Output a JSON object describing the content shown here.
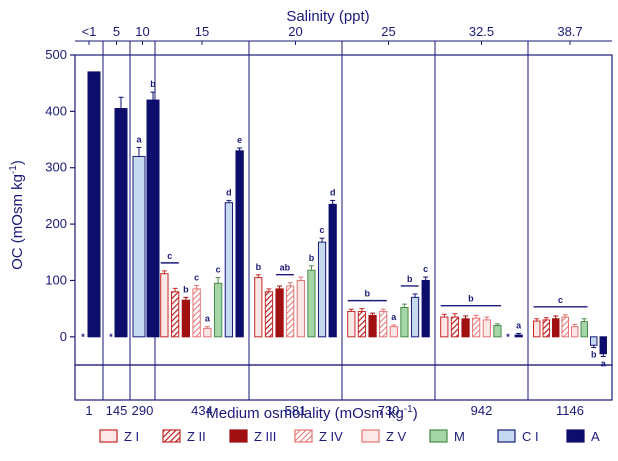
{
  "chart_data": {
    "type": "bar",
    "ylabel_main": "OC (mOsm kg",
    "ylabel_sup": "-1",
    "ylabel_end": ")",
    "xlabel_main": "Medium osmolality (mOsm kg",
    "xlabel_sup": "-1",
    "xlabel_end": ")",
    "top_axis_title": "Salinity (ppt)",
    "ylim": [
      -50,
      500
    ],
    "yticks": [
      "0",
      "100",
      "200",
      "300",
      "400",
      "500"
    ],
    "series": [
      {
        "name": "Z I",
        "pattern": "hollow",
        "color": "#c62828"
      },
      {
        "name": "Z II",
        "pattern": "hatch",
        "color": "#c62828"
      },
      {
        "name": "Z III",
        "pattern": "solid",
        "color": "#a01010"
      },
      {
        "name": "Z IV",
        "pattern": "hatch-light",
        "color": "#e57373"
      },
      {
        "name": "Z V",
        "pattern": "hollow",
        "color": "#e57373"
      },
      {
        "name": "M",
        "pattern": "solid",
        "color": "#a5d6a7"
      },
      {
        "name": "C I",
        "pattern": "solid",
        "color": "#c5d9f0"
      },
      {
        "name": "A",
        "pattern": "solid",
        "color": "#0d0d6b"
      }
    ],
    "groups": [
      {
        "osmolality": "1",
        "salinity": "<1",
        "bars": [
          {
            "series": 7,
            "value": 470,
            "err": 0
          }
        ],
        "asterisk": true
      },
      {
        "osmolality": "145",
        "salinity": "5",
        "bars": [
          {
            "series": 7,
            "value": 405,
            "err": 20
          }
        ],
        "asterisk": true
      },
      {
        "osmolality": "290",
        "salinity": "10",
        "bars": [
          {
            "series": 6,
            "value": 320,
            "err": 16,
            "label": "a"
          },
          {
            "series": 7,
            "value": 420,
            "err": 14,
            "label": "b"
          }
        ]
      },
      {
        "osmolality": "434",
        "salinity": "15",
        "bars": [
          {
            "series": 0,
            "value": 112,
            "err": 5
          },
          {
            "series": 1,
            "value": 80,
            "err": 6
          },
          {
            "series": 2,
            "value": 65,
            "err": 5,
            "label": "b"
          },
          {
            "series": 3,
            "value": 85,
            "err": 6,
            "label": "c"
          },
          {
            "series": 4,
            "value": 15,
            "err": 3,
            "label": "a"
          },
          {
            "series": 5,
            "value": 95,
            "err": 10,
            "label": "c"
          },
          {
            "series": 6,
            "value": 238,
            "err": 4,
            "label": "d"
          },
          {
            "series": 7,
            "value": 330,
            "err": 5,
            "label": "e"
          }
        ],
        "bracket": {
          "from": 0,
          "to": 1,
          "label": "c"
        }
      },
      {
        "osmolality": "581",
        "salinity": "20",
        "bars": [
          {
            "series": 0,
            "value": 105,
            "err": 5,
            "label": "b"
          },
          {
            "series": 1,
            "value": 80,
            "err": 5
          },
          {
            "series": 2,
            "value": 85,
            "err": 5
          },
          {
            "series": 3,
            "value": 90,
            "err": 6
          },
          {
            "series": 4,
            "value": 100,
            "err": 6
          },
          {
            "series": 5,
            "value": 118,
            "err": 8,
            "label": "b"
          },
          {
            "series": 6,
            "value": 168,
            "err": 7,
            "label": "c"
          },
          {
            "series": 7,
            "value": 235,
            "err": 7,
            "label": "d"
          }
        ],
        "bracket": {
          "from": 2,
          "to": 3,
          "label": "ab"
        }
      },
      {
        "osmolality": "730",
        "salinity": "25",
        "bars": [
          {
            "series": 0,
            "value": 45,
            "err": 4
          },
          {
            "series": 1,
            "value": 45,
            "err": 5
          },
          {
            "series": 2,
            "value": 38,
            "err": 4
          },
          {
            "series": 3,
            "value": 45,
            "err": 4
          },
          {
            "series": 4,
            "value": 18,
            "err": 3,
            "label": "a"
          },
          {
            "series": 5,
            "value": 52,
            "err": 6
          },
          {
            "series": 6,
            "value": 70,
            "err": 6
          },
          {
            "series": 7,
            "value": 100,
            "err": 6,
            "label": "c"
          }
        ],
        "bracket": {
          "from": 0,
          "to": 3,
          "label": "b"
        },
        "bracket2": {
          "from": 5,
          "to": 6,
          "label": "b"
        }
      },
      {
        "osmolality": "942",
        "salinity": "32.5",
        "bars": [
          {
            "series": 0,
            "value": 35,
            "err": 5
          },
          {
            "series": 1,
            "value": 35,
            "err": 6
          },
          {
            "series": 2,
            "value": 32,
            "err": 5
          },
          {
            "series": 3,
            "value": 33,
            "err": 5
          },
          {
            "series": 4,
            "value": 30,
            "err": 5
          },
          {
            "series": 5,
            "value": 20,
            "err": 3
          },
          {
            "series": 7,
            "value": 3,
            "err": 3,
            "label": "a"
          }
        ],
        "bracket": {
          "from": 0,
          "to": 5,
          "label": "b"
        },
        "asterisk_slot": 6
      },
      {
        "osmolality": "1146",
        "salinity": "38.7",
        "bars": [
          {
            "series": 0,
            "value": 28,
            "err": 4
          },
          {
            "series": 1,
            "value": 30,
            "err": 4
          },
          {
            "series": 2,
            "value": 32,
            "err": 5
          },
          {
            "series": 3,
            "value": 35,
            "err": 4
          },
          {
            "series": 4,
            "value": 18,
            "err": 4
          },
          {
            "series": 5,
            "value": 27,
            "err": 5
          },
          {
            "series": 6,
            "value": -15,
            "err": 4,
            "label": "b"
          },
          {
            "series": 7,
            "value": -30,
            "err": 5,
            "label": "a"
          }
        ],
        "bracket": {
          "from": 0,
          "to": 5,
          "label": "c"
        }
      }
    ]
  }
}
